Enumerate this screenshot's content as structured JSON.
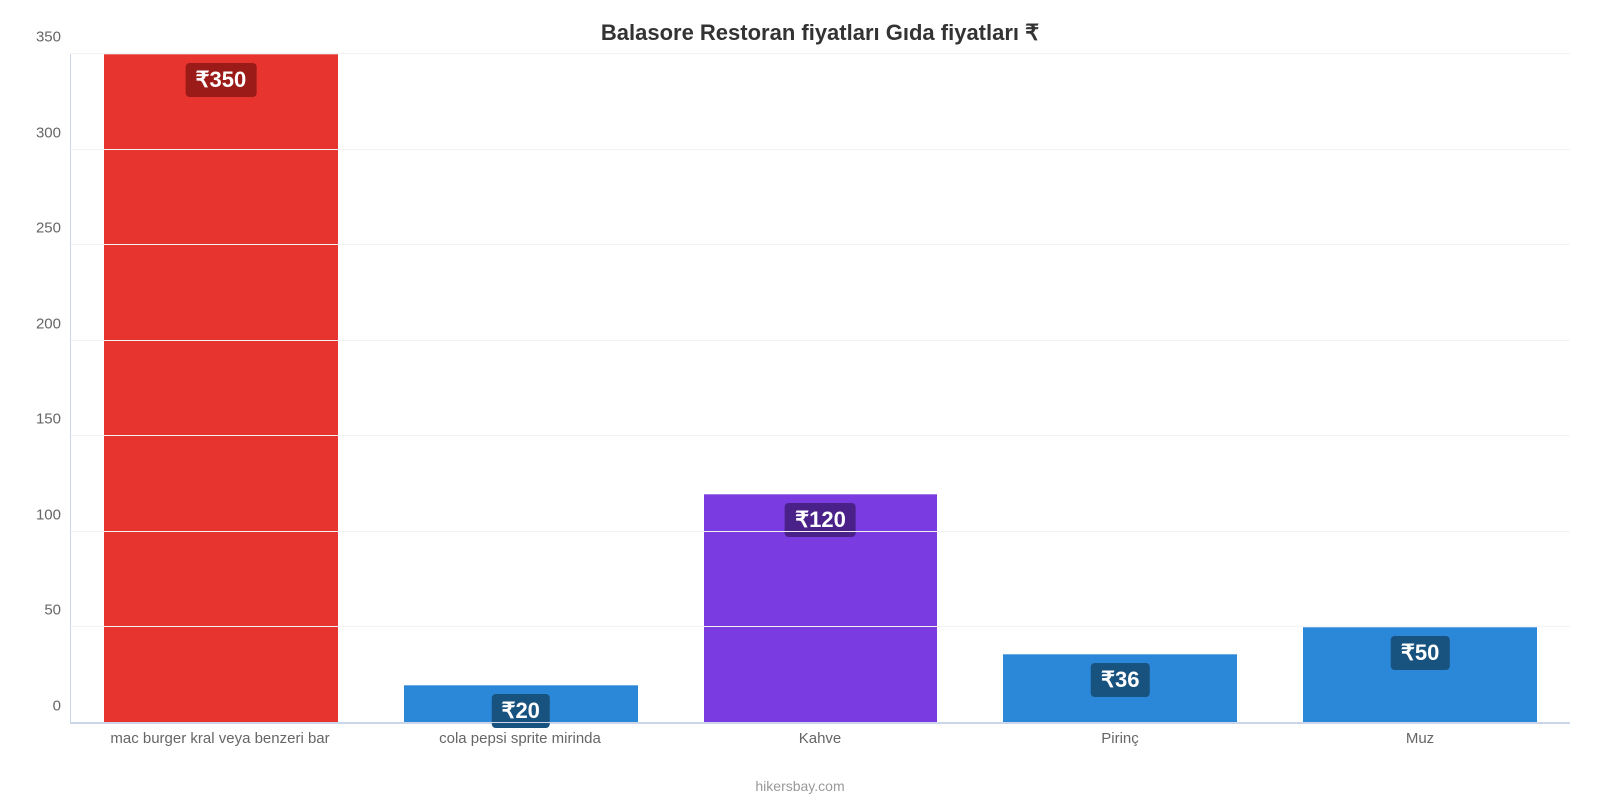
{
  "chart": {
    "type": "bar",
    "title": "Balasore Restoran fiyatları Gıda fiyatları ₹",
    "title_fontsize": 22,
    "title_color": "#333333",
    "background_color": "#ffffff",
    "grid_color": "#f2f2f2",
    "axis_line_color": "#ccd6eb",
    "tick_label_color": "#666666",
    "tick_label_fontsize": 15,
    "ylim_max": 350,
    "y_ticks": [
      0,
      50,
      100,
      150,
      200,
      250,
      300,
      350
    ],
    "bar_width_pct": 78,
    "badge_fontsize": 22,
    "badge_text_color": "#ffffff",
    "categories": [
      "mac burger kral veya benzeri bar",
      "cola pepsi sprite mirinda",
      "Kahve",
      "Pirinç",
      "Muz"
    ],
    "values": [
      350,
      20,
      120,
      36,
      50
    ],
    "value_labels": [
      "₹350",
      "₹20",
      "₹120",
      "₹36",
      "₹50"
    ],
    "bar_colors": [
      "#e8342f",
      "#2b87d8",
      "#7a3ce0",
      "#2b87d8",
      "#2b87d8"
    ],
    "badge_bg_colors": [
      "#9a1b18",
      "#18527f",
      "#4a2089",
      "#18527f",
      "#18527f"
    ],
    "credit": "hikersbay.com",
    "credit_color": "#999999",
    "credit_fontsize": 14
  }
}
